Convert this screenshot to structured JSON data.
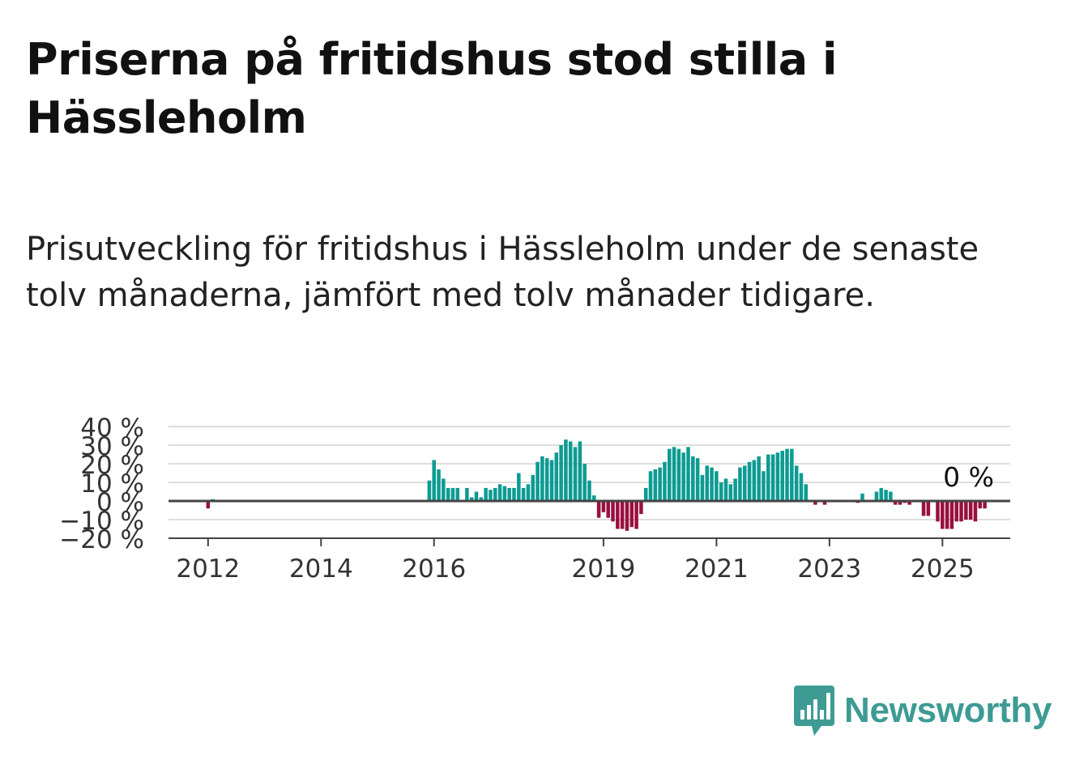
{
  "header": {
    "title": "Priserna på fritidshus stod stilla i Hässleholm",
    "subtitle": "Prisutveckling för fritidshus i Hässleholm under de senaste tolv månaderna, jämfört med tolv månader tidigare."
  },
  "brand": {
    "name": "Newsworthy",
    "icon": "newsworthy-logo-icon"
  },
  "colors": {
    "positive": "#0d9b92",
    "negative": "#99103f",
    "grid": "#dddddd",
    "axis": "#444444",
    "brand": "#3e9b94"
  },
  "chart_data": {
    "type": "bar",
    "y_tick_labels": [
      "40 %",
      "30 %",
      "20 %",
      "10 %",
      "0 %",
      "−10 %",
      "−20 %"
    ],
    "y_ticks": [
      40,
      30,
      20,
      10,
      0,
      -10,
      -20
    ],
    "ylim": [
      -20,
      40
    ],
    "x_tick_labels": [
      "2012",
      "2014",
      "2016",
      "2019",
      "2021",
      "2023",
      "2025"
    ],
    "x_ticks": [
      2012.0,
      2014.0,
      2016.0,
      2019.0,
      2021.0,
      2023.0,
      2025.0
    ],
    "xlim": [
      2011.3,
      2026.2
    ],
    "last_value_label": "0 %",
    "grid": true,
    "start": 2012.0,
    "step": 0.08333,
    "values": [
      -4,
      1,
      0,
      0,
      0,
      0,
      0,
      0,
      0,
      0,
      0,
      0,
      0,
      0,
      0,
      0,
      0,
      0,
      0,
      0,
      0,
      0,
      0,
      0,
      0,
      0,
      0,
      0,
      0,
      0,
      0,
      0,
      0,
      0,
      0,
      0,
      0,
      0,
      0,
      0,
      0,
      0,
      0,
      0,
      0,
      0,
      0,
      11,
      22,
      17,
      12,
      7,
      7,
      7,
      0,
      7,
      2,
      5,
      2,
      7,
      6,
      7,
      9,
      8,
      7,
      7,
      15,
      7,
      9,
      14,
      21,
      24,
      23,
      22,
      26,
      30,
      33,
      32,
      29,
      32,
      20,
      11,
      3,
      -9,
      -6,
      -9,
      -11,
      -15,
      -15,
      -16,
      -14,
      -15,
      -7,
      7,
      16,
      17,
      18,
      21,
      28,
      29,
      28,
      26,
      29,
      24,
      23,
      14,
      19,
      18,
      16,
      10,
      12,
      9,
      12,
      18,
      19,
      21,
      22,
      24,
      16,
      25,
      25,
      26,
      27,
      28,
      28,
      19,
      15,
      9,
      0,
      -2,
      0,
      -2,
      0,
      0,
      0,
      0,
      0,
      0,
      -1,
      4,
      0,
      0,
      5,
      7,
      6,
      5,
      -2,
      -2,
      -1,
      -2,
      0,
      0,
      -8,
      -8,
      0,
      -11,
      -15,
      -15,
      -15,
      -11,
      -11,
      -10,
      -10,
      -11,
      -4,
      -4,
      0
    ]
  }
}
